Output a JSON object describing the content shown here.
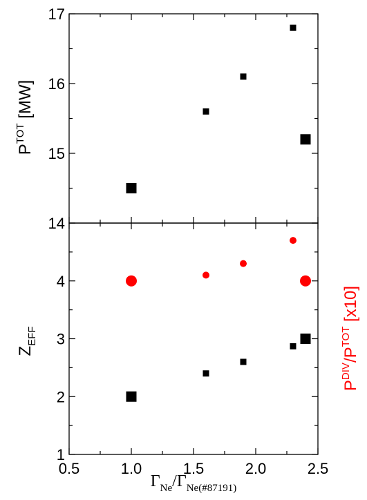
{
  "chart_data": [
    {
      "type": "scatter",
      "panel": "top",
      "ylabel": {
        "main": "P",
        "sup": "TOT",
        "unit": " [MW]"
      },
      "ylim": [
        14,
        17
      ],
      "yticks": [
        14,
        15,
        16,
        17
      ],
      "xlim": [
        0.5,
        2.5
      ],
      "series": [
        {
          "marker": "square",
          "color": "#000000",
          "points": [
            {
              "x": 1.0,
              "y": 14.5,
              "size": "large"
            },
            {
              "x": 1.6,
              "y": 15.6,
              "size": "small"
            },
            {
              "x": 1.9,
              "y": 16.1,
              "size": "small"
            },
            {
              "x": 2.3,
              "y": 16.8,
              "size": "small"
            },
            {
              "x": 2.4,
              "y": 15.2,
              "size": "large"
            }
          ]
        }
      ]
    },
    {
      "type": "scatter",
      "panel": "bottom",
      "ylabel": {
        "main": "Z",
        "sub": "EFF"
      },
      "y2label": {
        "main1": "P",
        "sup1": "DIV",
        "mid": "/P",
        "sup2": "TOT",
        "tail": " [x10]",
        "color": "#ff0000"
      },
      "ylim": [
        1,
        5
      ],
      "yticks": [
        1,
        2,
        3,
        4
      ],
      "xlim": [
        0.5,
        2.5
      ],
      "xticks": [
        "0.5",
        "1.0",
        "1.5",
        "2.0",
        "2.5"
      ],
      "xlabel": {
        "g1": "Γ",
        "s1": "Ne",
        "slash": "/",
        "g2": "Γ",
        "s2": "Ne(#87191)"
      },
      "series": [
        {
          "marker": "square",
          "color": "#000000",
          "points": [
            {
              "x": 1.0,
              "y": 2.0,
              "size": "large"
            },
            {
              "x": 1.6,
              "y": 2.4,
              "size": "small"
            },
            {
              "x": 1.9,
              "y": 2.6,
              "size": "small"
            },
            {
              "x": 2.3,
              "y": 2.87,
              "size": "small"
            },
            {
              "x": 2.4,
              "y": 3.0,
              "size": "large"
            }
          ]
        },
        {
          "marker": "circle",
          "color": "#ff0000",
          "points": [
            {
              "x": 1.0,
              "y": 4.0,
              "size": "large"
            },
            {
              "x": 1.6,
              "y": 4.1,
              "size": "small"
            },
            {
              "x": 1.9,
              "y": 4.3,
              "size": "small"
            },
            {
              "x": 2.3,
              "y": 4.7,
              "size": "small"
            },
            {
              "x": 2.4,
              "y": 4.0,
              "size": "large"
            }
          ]
        }
      ]
    }
  ]
}
